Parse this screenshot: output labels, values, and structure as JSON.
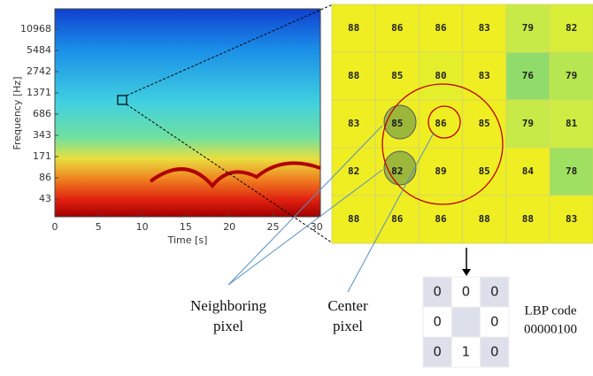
{
  "spectrogram": {
    "y_label": "Frequency [Hz]",
    "x_label": "Time [s]",
    "y_ticks": [
      "10968",
      "5484",
      "2742",
      "1371",
      "686",
      "343",
      "171",
      "86",
      "43"
    ],
    "x_ticks": [
      "0",
      "5",
      "10",
      "15",
      "20",
      "25",
      "30"
    ]
  },
  "grid": {
    "rows": [
      [
        "88",
        "86",
        "86",
        "83",
        "79",
        "82"
      ],
      [
        "88",
        "85",
        "80",
        "83",
        "76",
        "79"
      ],
      [
        "83",
        "85",
        "86",
        "85",
        "79",
        "81"
      ],
      [
        "82",
        "82",
        "89",
        "85",
        "84",
        "78"
      ],
      [
        "88",
        "86",
        "86",
        "88",
        "88",
        "83"
      ]
    ]
  },
  "lbp_table": {
    "rows": [
      [
        "0",
        "0",
        "0"
      ],
      [
        "0",
        null,
        "0"
      ],
      [
        "0",
        "1",
        "0"
      ]
    ]
  },
  "labels": {
    "neighboring": [
      "Neighboring",
      "pixel"
    ],
    "center": [
      "Center",
      "pixel"
    ],
    "lbp_code": [
      "LBP code",
      "00000100"
    ]
  }
}
